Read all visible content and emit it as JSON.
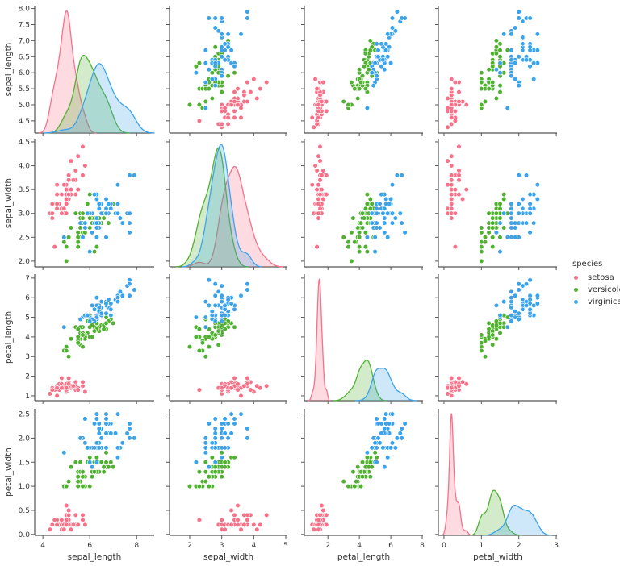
{
  "chart_data": {
    "type": "scatter",
    "kind": "pairplot",
    "variables": [
      "sepal_length",
      "sepal_width",
      "petal_length",
      "petal_width"
    ],
    "diag_kind": "kde",
    "grid": false,
    "legend": {
      "title": "species",
      "placement": "right",
      "entries": [
        "setosa",
        "versicolor",
        "virginica"
      ]
    },
    "colors": {
      "setosa": "#f77189",
      "versicolor": "#50b131",
      "virginica": "#3ba3ec"
    },
    "xlim": {
      "sepal_length": [
        3.65,
        8.75
      ],
      "sepal_width": [
        1.37,
        5.05
      ],
      "petal_length": [
        0.5,
        8.05
      ],
      "petal_width": [
        -0.15,
        3.02
      ]
    },
    "ylim": {
      "sepal_length": [
        4.12,
        8.09
      ],
      "sepal_width": [
        1.88,
        4.55
      ],
      "petal_length": [
        0.75,
        7.2
      ],
      "petal_width": [
        -0.02,
        2.61
      ]
    },
    "xticks": {
      "sepal_length": [
        4,
        6,
        8
      ],
      "sepal_width": [
        2,
        3,
        4,
        5
      ],
      "petal_length": [
        2,
        4,
        6,
        8
      ],
      "petal_width": [
        0,
        1,
        2,
        3
      ]
    },
    "yticks": {
      "sepal_length": [
        "4.5",
        "5.0",
        "5.5",
        "6.0",
        "6.5",
        "7.0",
        "7.5",
        "8.0"
      ],
      "sepal_width": [
        "2.0",
        "2.5",
        "3.0",
        "3.5",
        "4.0",
        "4.5"
      ],
      "petal_length": [
        "1",
        "2",
        "3",
        "4",
        "5",
        "6",
        "7"
      ],
      "petal_width": [
        "0.0",
        "0.5",
        "1.0",
        "1.5",
        "2.0",
        "2.5"
      ]
    },
    "data": {
      "setosa": [
        [
          5.1,
          3.5,
          1.4,
          0.2
        ],
        [
          4.9,
          3.0,
          1.4,
          0.2
        ],
        [
          4.7,
          3.2,
          1.3,
          0.2
        ],
        [
          4.6,
          3.1,
          1.5,
          0.2
        ],
        [
          5.0,
          3.6,
          1.4,
          0.2
        ],
        [
          5.4,
          3.9,
          1.7,
          0.4
        ],
        [
          4.6,
          3.4,
          1.4,
          0.3
        ],
        [
          5.0,
          3.4,
          1.5,
          0.2
        ],
        [
          4.4,
          2.9,
          1.4,
          0.2
        ],
        [
          4.9,
          3.1,
          1.5,
          0.1
        ],
        [
          5.4,
          3.7,
          1.5,
          0.2
        ],
        [
          4.8,
          3.4,
          1.6,
          0.2
        ],
        [
          4.8,
          3.0,
          1.4,
          0.1
        ],
        [
          4.3,
          3.0,
          1.1,
          0.1
        ],
        [
          5.8,
          4.0,
          1.2,
          0.2
        ],
        [
          5.7,
          4.4,
          1.5,
          0.4
        ],
        [
          5.4,
          3.9,
          1.3,
          0.4
        ],
        [
          5.1,
          3.5,
          1.4,
          0.3
        ],
        [
          5.7,
          3.8,
          1.7,
          0.3
        ],
        [
          5.1,
          3.8,
          1.5,
          0.3
        ],
        [
          5.4,
          3.4,
          1.7,
          0.2
        ],
        [
          5.1,
          3.7,
          1.5,
          0.4
        ],
        [
          4.6,
          3.6,
          1.0,
          0.2
        ],
        [
          5.1,
          3.3,
          1.7,
          0.5
        ],
        [
          4.8,
          3.4,
          1.9,
          0.2
        ],
        [
          5.0,
          3.0,
          1.6,
          0.2
        ],
        [
          5.0,
          3.4,
          1.6,
          0.4
        ],
        [
          5.2,
          3.5,
          1.5,
          0.2
        ],
        [
          5.2,
          3.4,
          1.4,
          0.2
        ],
        [
          4.7,
          3.2,
          1.6,
          0.2
        ],
        [
          4.8,
          3.1,
          1.6,
          0.2
        ],
        [
          5.4,
          3.4,
          1.5,
          0.4
        ],
        [
          5.2,
          4.1,
          1.5,
          0.1
        ],
        [
          5.5,
          4.2,
          1.4,
          0.2
        ],
        [
          4.9,
          3.1,
          1.5,
          0.2
        ],
        [
          5.0,
          3.2,
          1.2,
          0.2
        ],
        [
          5.5,
          3.5,
          1.3,
          0.2
        ],
        [
          4.9,
          3.6,
          1.4,
          0.1
        ],
        [
          4.4,
          3.0,
          1.3,
          0.2
        ],
        [
          5.1,
          3.4,
          1.5,
          0.2
        ],
        [
          5.0,
          3.5,
          1.3,
          0.3
        ],
        [
          4.5,
          2.3,
          1.3,
          0.3
        ],
        [
          4.4,
          3.2,
          1.3,
          0.2
        ],
        [
          5.0,
          3.5,
          1.6,
          0.6
        ],
        [
          5.1,
          3.8,
          1.9,
          0.4
        ],
        [
          4.8,
          3.0,
          1.4,
          0.3
        ],
        [
          5.1,
          3.8,
          1.6,
          0.2
        ],
        [
          4.6,
          3.2,
          1.4,
          0.2
        ],
        [
          5.3,
          3.7,
          1.5,
          0.2
        ],
        [
          5.0,
          3.3,
          1.4,
          0.2
        ]
      ],
      "versicolor": [
        [
          7.0,
          3.2,
          4.7,
          1.4
        ],
        [
          6.4,
          3.2,
          4.5,
          1.5
        ],
        [
          6.9,
          3.1,
          4.9,
          1.5
        ],
        [
          5.5,
          2.3,
          4.0,
          1.3
        ],
        [
          6.5,
          2.8,
          4.6,
          1.5
        ],
        [
          5.7,
          2.8,
          4.5,
          1.3
        ],
        [
          6.3,
          3.3,
          4.7,
          1.6
        ],
        [
          4.9,
          2.4,
          3.3,
          1.0
        ],
        [
          6.6,
          2.9,
          4.6,
          1.3
        ],
        [
          5.2,
          2.7,
          3.9,
          1.4
        ],
        [
          5.0,
          2.0,
          3.5,
          1.0
        ],
        [
          5.9,
          3.0,
          4.2,
          1.5
        ],
        [
          6.0,
          2.2,
          4.0,
          1.0
        ],
        [
          6.1,
          2.9,
          4.7,
          1.4
        ],
        [
          5.6,
          2.9,
          3.6,
          1.3
        ],
        [
          6.7,
          3.1,
          4.4,
          1.4
        ],
        [
          5.6,
          3.0,
          4.5,
          1.5
        ],
        [
          5.8,
          2.7,
          4.1,
          1.0
        ],
        [
          6.2,
          2.2,
          4.5,
          1.5
        ],
        [
          5.6,
          2.5,
          3.9,
          1.1
        ],
        [
          5.9,
          3.2,
          4.8,
          1.8
        ],
        [
          6.1,
          2.8,
          4.0,
          1.3
        ],
        [
          6.3,
          2.5,
          4.9,
          1.5
        ],
        [
          6.1,
          2.8,
          4.7,
          1.2
        ],
        [
          6.4,
          2.9,
          4.3,
          1.3
        ],
        [
          6.6,
          3.0,
          4.4,
          1.4
        ],
        [
          6.8,
          2.8,
          4.8,
          1.4
        ],
        [
          6.7,
          3.0,
          5.0,
          1.7
        ],
        [
          6.0,
          2.9,
          4.5,
          1.5
        ],
        [
          5.7,
          2.6,
          3.5,
          1.0
        ],
        [
          5.5,
          2.4,
          3.8,
          1.1
        ],
        [
          5.5,
          2.4,
          3.7,
          1.0
        ],
        [
          5.8,
          2.7,
          3.9,
          1.2
        ],
        [
          6.0,
          2.7,
          5.1,
          1.6
        ],
        [
          5.4,
          3.0,
          4.5,
          1.5
        ],
        [
          6.0,
          3.4,
          4.5,
          1.6
        ],
        [
          6.7,
          3.1,
          4.7,
          1.5
        ],
        [
          6.3,
          2.3,
          4.4,
          1.3
        ],
        [
          5.6,
          3.0,
          4.1,
          1.3
        ],
        [
          5.5,
          2.5,
          4.0,
          1.3
        ],
        [
          5.5,
          2.6,
          4.4,
          1.2
        ],
        [
          6.1,
          3.0,
          4.6,
          1.4
        ],
        [
          5.8,
          2.6,
          4.0,
          1.2
        ],
        [
          5.0,
          2.3,
          3.3,
          1.0
        ],
        [
          5.6,
          2.7,
          4.2,
          1.3
        ],
        [
          5.7,
          3.0,
          4.2,
          1.2
        ],
        [
          5.7,
          2.9,
          4.2,
          1.3
        ],
        [
          6.2,
          2.9,
          4.3,
          1.3
        ],
        [
          5.1,
          2.5,
          3.0,
          1.1
        ],
        [
          5.7,
          2.8,
          4.1,
          1.3
        ]
      ],
      "virginica": [
        [
          6.3,
          3.3,
          6.0,
          2.5
        ],
        [
          5.8,
          2.7,
          5.1,
          1.9
        ],
        [
          7.1,
          3.0,
          5.9,
          2.1
        ],
        [
          6.3,
          2.9,
          5.6,
          1.8
        ],
        [
          6.5,
          3.0,
          5.8,
          2.2
        ],
        [
          7.6,
          3.0,
          6.6,
          2.1
        ],
        [
          4.9,
          2.5,
          4.5,
          1.7
        ],
        [
          7.3,
          2.9,
          6.3,
          1.8
        ],
        [
          6.7,
          2.5,
          5.8,
          1.8
        ],
        [
          7.2,
          3.6,
          6.1,
          2.5
        ],
        [
          6.5,
          3.2,
          5.1,
          2.0
        ],
        [
          6.4,
          2.7,
          5.3,
          1.9
        ],
        [
          6.8,
          3.0,
          5.5,
          2.1
        ],
        [
          5.7,
          2.5,
          5.0,
          2.0
        ],
        [
          5.8,
          2.8,
          5.1,
          2.4
        ],
        [
          6.4,
          3.2,
          5.3,
          2.3
        ],
        [
          6.5,
          3.0,
          5.5,
          1.8
        ],
        [
          7.7,
          3.8,
          6.7,
          2.2
        ],
        [
          7.7,
          2.6,
          6.9,
          2.3
        ],
        [
          6.0,
          2.2,
          5.0,
          1.5
        ],
        [
          6.9,
          3.2,
          5.7,
          2.3
        ],
        [
          5.6,
          2.8,
          4.9,
          2.0
        ],
        [
          7.7,
          2.8,
          6.7,
          2.0
        ],
        [
          6.3,
          2.7,
          4.9,
          1.8
        ],
        [
          6.7,
          3.3,
          5.7,
          2.1
        ],
        [
          7.2,
          3.2,
          6.0,
          1.8
        ],
        [
          6.2,
          2.8,
          4.8,
          1.8
        ],
        [
          6.1,
          3.0,
          4.9,
          1.8
        ],
        [
          6.4,
          2.8,
          5.6,
          2.1
        ],
        [
          7.2,
          3.0,
          5.8,
          1.6
        ],
        [
          7.4,
          2.8,
          6.1,
          1.9
        ],
        [
          7.9,
          3.8,
          6.4,
          2.0
        ],
        [
          6.4,
          2.8,
          5.6,
          2.2
        ],
        [
          6.3,
          2.8,
          5.1,
          1.5
        ],
        [
          6.1,
          2.6,
          5.6,
          1.4
        ],
        [
          7.7,
          3.0,
          6.1,
          2.3
        ],
        [
          6.3,
          3.4,
          5.6,
          2.4
        ],
        [
          6.4,
          3.1,
          5.5,
          1.8
        ],
        [
          6.0,
          3.0,
          4.8,
          1.8
        ],
        [
          6.9,
          3.1,
          5.4,
          2.1
        ],
        [
          6.7,
          3.1,
          5.6,
          2.4
        ],
        [
          6.9,
          3.1,
          5.1,
          2.3
        ],
        [
          5.8,
          2.7,
          5.1,
          1.9
        ],
        [
          6.8,
          3.2,
          5.9,
          2.3
        ],
        [
          6.7,
          3.3,
          5.7,
          2.5
        ],
        [
          6.7,
          3.0,
          5.2,
          2.3
        ],
        [
          6.3,
          2.5,
          5.0,
          1.9
        ],
        [
          6.5,
          3.0,
          5.2,
          2.0
        ],
        [
          6.2,
          3.4,
          5.4,
          2.3
        ],
        [
          5.9,
          3.0,
          5.1,
          1.8
        ]
      ]
    }
  }
}
